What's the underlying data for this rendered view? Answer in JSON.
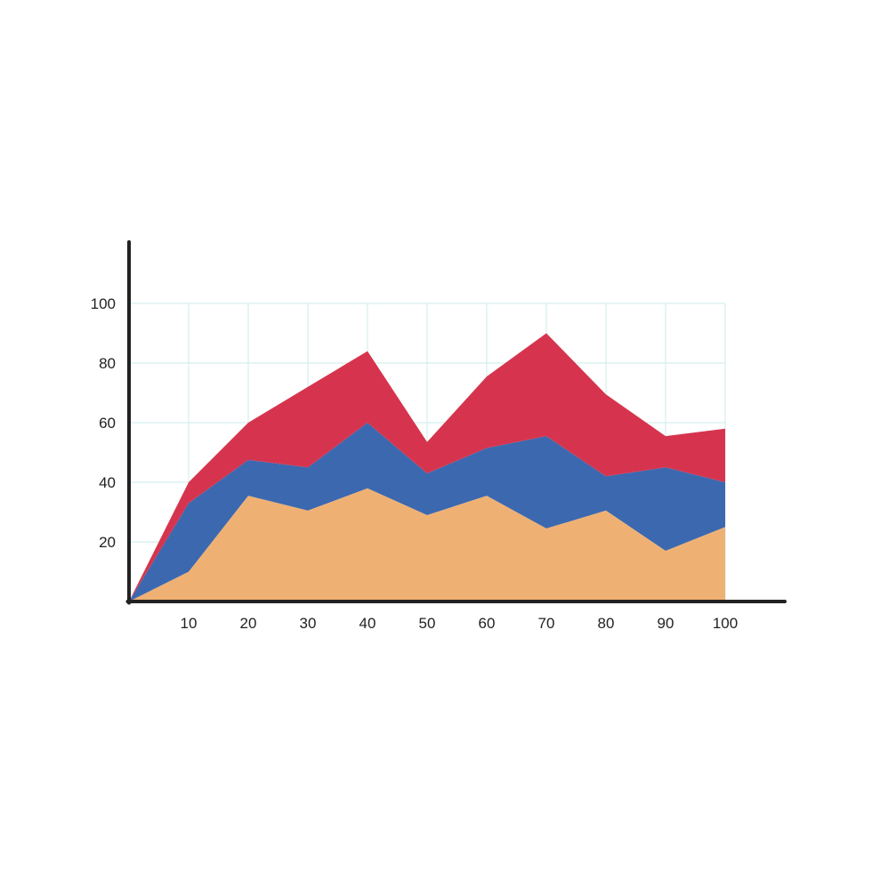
{
  "chart_data": {
    "type": "area",
    "stacked": true,
    "title": "",
    "xlabel": "",
    "ylabel": "",
    "x": [
      0,
      10,
      20,
      30,
      40,
      50,
      60,
      70,
      80,
      90,
      100
    ],
    "x_ticks": [
      "10",
      "20",
      "30",
      "40",
      "50",
      "60",
      "70",
      "80",
      "90",
      "100"
    ],
    "y_ticks": [
      "20",
      "40",
      "60",
      "80",
      "100"
    ],
    "xlim": [
      0,
      100
    ],
    "ylim": [
      0,
      100
    ],
    "grid": true,
    "legend": "none",
    "series": [
      {
        "color": "#EFB173",
        "values": [
          0,
          10,
          35.5,
          30.5,
          38,
          29,
          35.5,
          24.5,
          30.5,
          17,
          25
        ]
      },
      {
        "color": "#3C68AF",
        "values": [
          0,
          23,
          12,
          14.5,
          22,
          14,
          16,
          31,
          11.5,
          28,
          15
        ]
      },
      {
        "color": "#D6344E",
        "values": [
          0,
          7,
          12.5,
          27,
          24,
          10.5,
          24,
          34.5,
          27.5,
          10.5,
          18
        ]
      }
    ],
    "colors": {
      "axis": "#222222",
      "grid": "#D4EEEE"
    }
  }
}
